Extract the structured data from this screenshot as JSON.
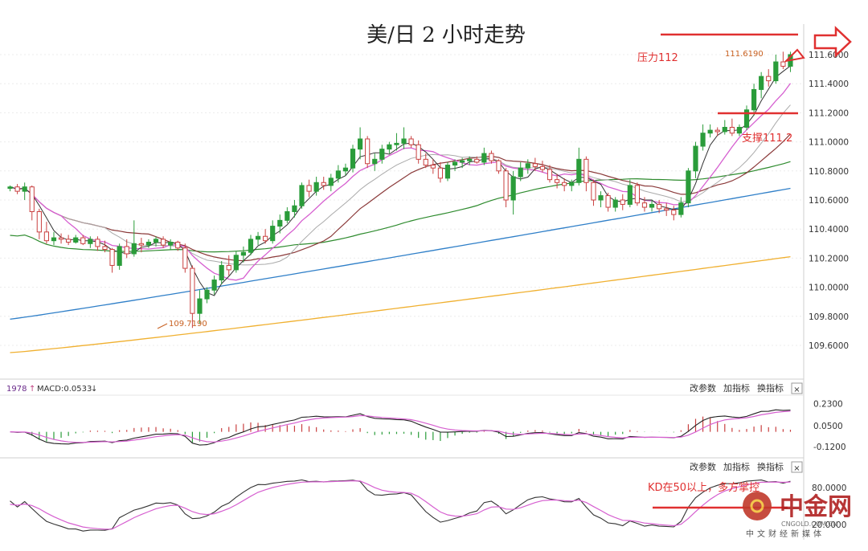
{
  "title": "美/日 2 小时走势",
  "price_axis": {
    "ticks": [
      "111.6000",
      "111.4000",
      "111.2000",
      "111.0000",
      "110.8000",
      "110.6000",
      "110.4000",
      "110.2000",
      "110.0000",
      "109.8000",
      "109.6000"
    ],
    "range": [
      109.5,
      111.72
    ]
  },
  "annotations": {
    "resistance": "压力112",
    "support": "支撑111.2",
    "high_label": "111.6190",
    "low_label": "109.7190",
    "kd_note": "KD在50以上，多方掌控"
  },
  "macd_panel": {
    "info_prefix": "1978",
    "info_label": "MACD:0.0533",
    "ticks": [
      "0.2300",
      "0.0500",
      "-0.1200"
    ],
    "buttons": [
      "改参数",
      "加指标",
      "换指标"
    ],
    "close": "×"
  },
  "kd_panel": {
    "ticks": [
      "80.0000",
      "20.0000"
    ],
    "buttons": [
      "改参数",
      "加指标",
      "换指标"
    ],
    "close": "×"
  },
  "watermark": {
    "brand": "中金网",
    "url": "CNGOLD.COM.CN",
    "sub": "中文财经新媒体"
  },
  "colors": {
    "up": "#2a9c3a",
    "down": "#c94040",
    "ma_short": "#333333",
    "ma_pink": "#d65fd0",
    "ma_gray": "#aaaaaa",
    "ma_brown": "#8b3a3a",
    "ma_green": "#2e8b2e",
    "ma_blue": "#2f7fc8",
    "ma_orange": "#f0b030",
    "annotation": "#e03030"
  },
  "chart_data": {
    "type": "candlestick",
    "title": "美/日 2 小时走势",
    "ylim": [
      109.5,
      111.72
    ],
    "candles": [
      [
        110.68,
        110.7,
        110.66,
        110.69
      ],
      [
        110.69,
        110.71,
        110.64,
        110.66
      ],
      [
        110.66,
        110.72,
        110.6,
        110.69
      ],
      [
        110.69,
        110.7,
        110.46,
        110.52
      ],
      [
        110.52,
        110.54,
        110.33,
        110.38
      ],
      [
        110.38,
        110.45,
        110.3,
        110.32
      ],
      [
        110.32,
        110.38,
        110.29,
        110.34
      ],
      [
        110.34,
        110.37,
        110.3,
        110.33
      ],
      [
        110.33,
        110.36,
        110.29,
        110.31
      ],
      [
        110.31,
        110.36,
        110.3,
        110.34
      ],
      [
        110.34,
        110.36,
        110.29,
        110.3
      ],
      [
        110.3,
        110.35,
        110.27,
        110.33
      ],
      [
        110.33,
        110.35,
        110.25,
        110.28
      ],
      [
        110.28,
        110.32,
        110.24,
        110.26
      ],
      [
        110.26,
        110.27,
        110.1,
        110.15
      ],
      [
        110.15,
        110.3,
        110.12,
        110.28
      ],
      [
        110.28,
        110.33,
        110.2,
        110.23
      ],
      [
        110.23,
        110.46,
        110.21,
        110.3
      ],
      [
        110.3,
        110.34,
        110.24,
        110.29
      ],
      [
        110.29,
        110.33,
        110.27,
        110.31
      ],
      [
        110.31,
        110.35,
        110.28,
        110.33
      ],
      [
        110.33,
        110.35,
        110.27,
        110.29
      ],
      [
        110.29,
        110.33,
        110.26,
        110.31
      ],
      [
        110.31,
        110.32,
        110.25,
        110.27
      ],
      [
        110.27,
        110.3,
        110.1,
        110.13
      ],
      [
        110.13,
        110.15,
        109.72,
        109.82
      ],
      [
        109.82,
        109.98,
        109.75,
        109.92
      ],
      [
        109.92,
        110.0,
        109.89,
        109.98
      ],
      [
        109.98,
        110.08,
        109.95,
        110.05
      ],
      [
        110.05,
        110.18,
        110.02,
        110.15
      ],
      [
        110.15,
        110.22,
        110.08,
        110.12
      ],
      [
        110.12,
        110.25,
        110.1,
        110.22
      ],
      [
        110.22,
        110.28,
        110.17,
        110.24
      ],
      [
        110.24,
        110.36,
        110.22,
        110.33
      ],
      [
        110.33,
        110.38,
        110.29,
        110.35
      ],
      [
        110.35,
        110.4,
        110.3,
        110.32
      ],
      [
        110.32,
        110.46,
        110.3,
        110.42
      ],
      [
        110.42,
        110.5,
        110.37,
        110.46
      ],
      [
        110.46,
        110.55,
        110.44,
        110.52
      ],
      [
        110.52,
        110.6,
        110.48,
        110.56
      ],
      [
        110.56,
        110.72,
        110.54,
        110.7
      ],
      [
        110.7,
        110.74,
        110.62,
        110.66
      ],
      [
        110.66,
        110.76,
        110.63,
        110.72
      ],
      [
        110.72,
        110.76,
        110.67,
        110.7
      ],
      [
        110.7,
        110.78,
        110.66,
        110.75
      ],
      [
        110.75,
        110.84,
        110.72,
        110.8
      ],
      [
        110.8,
        110.85,
        110.77,
        110.82
      ],
      [
        110.82,
        110.98,
        110.79,
        110.95
      ],
      [
        110.95,
        111.1,
        110.88,
        111.02
      ],
      [
        111.02,
        111.04,
        110.82,
        110.85
      ],
      [
        110.85,
        110.92,
        110.8,
        110.88
      ],
      [
        110.88,
        110.98,
        110.85,
        110.95
      ],
      [
        110.95,
        111.0,
        110.92,
        110.98
      ],
      [
        110.98,
        111.06,
        110.94,
        110.99
      ],
      [
        110.99,
        111.1,
        110.95,
        111.02
      ],
      [
        111.02,
        111.04,
        110.96,
        110.98
      ],
      [
        110.98,
        111.01,
        110.85,
        110.88
      ],
      [
        110.88,
        110.92,
        110.82,
        110.84
      ],
      [
        110.84,
        110.88,
        110.78,
        110.82
      ],
      [
        110.82,
        110.86,
        110.72,
        110.75
      ],
      [
        110.75,
        110.86,
        110.73,
        110.84
      ],
      [
        110.84,
        110.88,
        110.8,
        110.86
      ],
      [
        110.86,
        110.89,
        110.82,
        110.87
      ],
      [
        110.87,
        110.9,
        110.84,
        110.88
      ],
      [
        110.88,
        110.9,
        110.85,
        110.86
      ],
      [
        110.86,
        110.96,
        110.84,
        110.92
      ],
      [
        110.92,
        110.94,
        110.85,
        110.87
      ],
      [
        110.87,
        110.88,
        110.78,
        110.8
      ],
      [
        110.8,
        110.82,
        110.55,
        110.6
      ],
      [
        110.6,
        110.8,
        110.5,
        110.76
      ],
      [
        110.76,
        110.86,
        110.73,
        110.82
      ],
      [
        110.82,
        110.88,
        110.78,
        110.85
      ],
      [
        110.85,
        110.89,
        110.8,
        110.83
      ],
      [
        110.83,
        110.87,
        110.79,
        110.81
      ],
      [
        110.81,
        110.84,
        110.72,
        110.74
      ],
      [
        110.74,
        110.78,
        110.68,
        110.72
      ],
      [
        110.72,
        110.75,
        110.66,
        110.7
      ],
      [
        110.7,
        110.74,
        110.66,
        110.72
      ],
      [
        110.72,
        110.96,
        110.7,
        110.88
      ],
      [
        110.88,
        110.9,
        110.66,
        110.72
      ],
      [
        110.72,
        110.74,
        110.56,
        110.6
      ],
      [
        110.6,
        110.66,
        110.55,
        110.63
      ],
      [
        110.63,
        110.65,
        110.52,
        110.55
      ],
      [
        110.55,
        110.62,
        110.52,
        110.6
      ],
      [
        110.6,
        110.64,
        110.53,
        110.57
      ],
      [
        110.57,
        110.74,
        110.55,
        110.7
      ],
      [
        110.7,
        110.72,
        110.56,
        110.58
      ],
      [
        110.58,
        110.62,
        110.52,
        110.55
      ],
      [
        110.55,
        110.6,
        110.52,
        110.57
      ],
      [
        110.57,
        110.6,
        110.51,
        110.54
      ],
      [
        110.54,
        110.58,
        110.49,
        110.53
      ],
      [
        110.53,
        110.56,
        110.46,
        110.5
      ],
      [
        110.5,
        110.62,
        110.48,
        110.58
      ],
      [
        110.58,
        110.82,
        110.55,
        110.8
      ],
      [
        110.8,
        111.0,
        110.75,
        110.97
      ],
      [
        110.97,
        111.12,
        110.94,
        111.06
      ],
      [
        111.06,
        111.12,
        111.03,
        111.08
      ],
      [
        111.08,
        111.1,
        111.04,
        111.07
      ],
      [
        111.07,
        111.15,
        111.05,
        111.1
      ],
      [
        111.1,
        111.16,
        111.04,
        111.06
      ],
      [
        111.06,
        111.12,
        111.04,
        111.1
      ],
      [
        111.1,
        111.25,
        111.08,
        111.22
      ],
      [
        111.22,
        111.4,
        111.18,
        111.36
      ],
      [
        111.36,
        111.48,
        111.3,
        111.45
      ],
      [
        111.45,
        111.5,
        111.38,
        111.42
      ],
      [
        111.42,
        111.6,
        111.4,
        111.55
      ],
      [
        111.55,
        111.62,
        111.5,
        111.52
      ],
      [
        111.52,
        111.62,
        111.48,
        111.6
      ]
    ],
    "macd_range": [
      -0.16,
      0.28
    ],
    "kd_range": [
      0,
      100
    ],
    "kd_reference": [
      80,
      20
    ]
  }
}
